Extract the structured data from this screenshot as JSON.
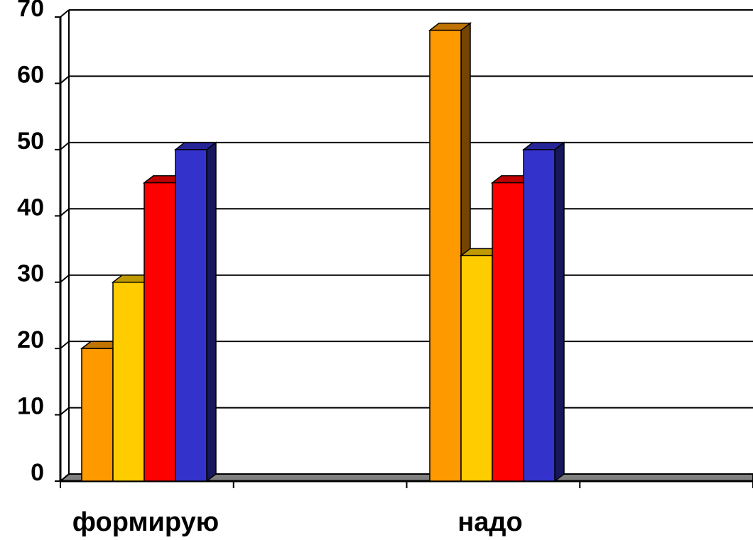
{
  "chart_data": {
    "type": "bar",
    "three_d": true,
    "categories": [
      "формирую",
      "надо"
    ],
    "series": [
      {
        "values": [
          20,
          68
        ],
        "color": "#FF9900"
      },
      {
        "values": [
          30,
          34
        ],
        "color": "#FFCC00"
      },
      {
        "values": [
          45,
          45
        ],
        "color": "#FF0000"
      },
      {
        "values": [
          50,
          50
        ],
        "color": "#3333CC"
      }
    ],
    "ylim": [
      0,
      70
    ],
    "yticks": [
      0,
      10,
      20,
      30,
      40,
      50,
      60,
      70
    ],
    "grid": true,
    "legend": "none"
  }
}
